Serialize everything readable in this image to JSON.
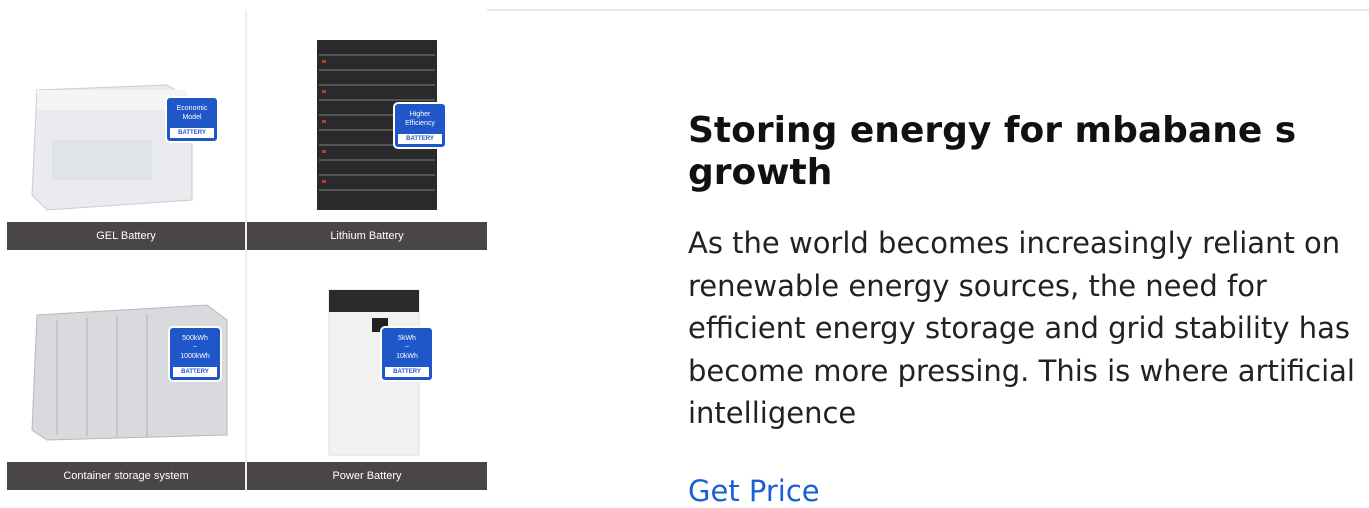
{
  "products": [
    {
      "caption": "GEL Battery",
      "badge": [
        "Economic",
        "Model"
      ],
      "badge_footer": "BATTERY"
    },
    {
      "caption": "Lithium Battery",
      "badge": [
        "Higher",
        "Efficiency"
      ],
      "badge_footer": "BATTERY"
    },
    {
      "caption": "Container storage system",
      "badge": [
        "500kWh",
        "~",
        "1000kWh"
      ],
      "badge_footer": "BATTERY"
    },
    {
      "caption": "Power Battery",
      "badge": [
        "5kWh",
        "~",
        "10kWh"
      ],
      "badge_footer": "BATTERY"
    }
  ],
  "article": {
    "title": "Storing energy for mbabane s growth",
    "body": "As the world becomes increasingly reliant on renewable energy sources, the need for efficient energy storage and grid stability has become more pressing. This is where artificial intelligence",
    "link": "Get Price"
  }
}
